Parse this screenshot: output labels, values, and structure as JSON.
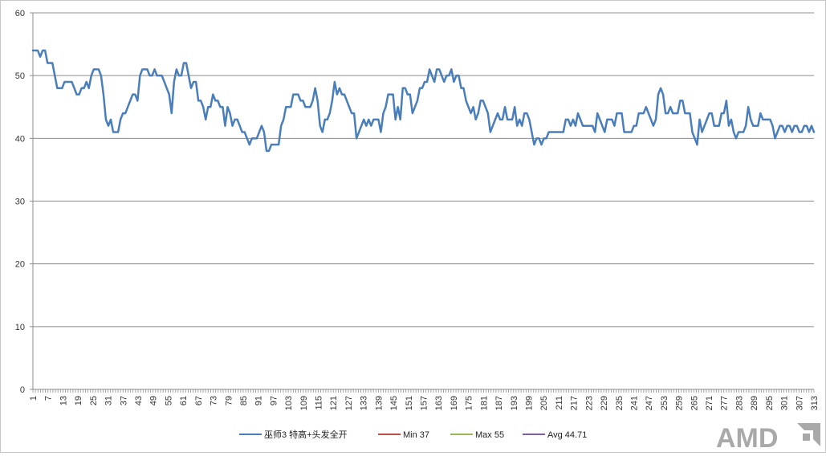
{
  "chart_data": {
    "type": "line",
    "title": "",
    "xlabel": "",
    "ylabel": "",
    "ylim": [
      0,
      60
    ],
    "yticks": [
      0,
      10,
      20,
      30,
      40,
      50,
      60
    ],
    "xlim": [
      1,
      313
    ],
    "xtick_start": 1,
    "xtick_step": 6,
    "grid": "horizontal",
    "legend_position": "bottom",
    "series": [
      {
        "name": "巫师3 特高+头发全开",
        "color": "#4a7ebb",
        "keypoints": [
          [
            1,
            54
          ],
          [
            3,
            54
          ],
          [
            4,
            53
          ],
          [
            5,
            54
          ],
          [
            6,
            54
          ],
          [
            7,
            52
          ],
          [
            9,
            52
          ],
          [
            10,
            50
          ],
          [
            11,
            48
          ],
          [
            13,
            48
          ],
          [
            14,
            49
          ],
          [
            17,
            49
          ],
          [
            18,
            48
          ],
          [
            19,
            47
          ],
          [
            20,
            47
          ],
          [
            21,
            48
          ],
          [
            22,
            48
          ],
          [
            23,
            49
          ],
          [
            24,
            48
          ],
          [
            25,
            50
          ],
          [
            26,
            51
          ],
          [
            28,
            51
          ],
          [
            29,
            50
          ],
          [
            30,
            47
          ],
          [
            31,
            43
          ],
          [
            32,
            42
          ],
          [
            33,
            43
          ],
          [
            34,
            41
          ],
          [
            36,
            41
          ],
          [
            37,
            43
          ],
          [
            38,
            44
          ],
          [
            39,
            44
          ],
          [
            41,
            46
          ],
          [
            42,
            47
          ],
          [
            43,
            47
          ],
          [
            44,
            46
          ],
          [
            45,
            50
          ],
          [
            46,
            51
          ],
          [
            48,
            51
          ],
          [
            49,
            50
          ],
          [
            50,
            50
          ],
          [
            51,
            51
          ],
          [
            52,
            50
          ],
          [
            54,
            50
          ],
          [
            55,
            49
          ],
          [
            56,
            48
          ],
          [
            57,
            47
          ],
          [
            58,
            44
          ],
          [
            59,
            49
          ],
          [
            60,
            51
          ],
          [
            61,
            50
          ],
          [
            62,
            50
          ],
          [
            63,
            52
          ],
          [
            64,
            52
          ],
          [
            65,
            50
          ],
          [
            66,
            48
          ],
          [
            67,
            49
          ],
          [
            68,
            49
          ],
          [
            69,
            46
          ],
          [
            70,
            46
          ],
          [
            71,
            45
          ],
          [
            72,
            43
          ],
          [
            73,
            45
          ],
          [
            74,
            45
          ],
          [
            75,
            47
          ],
          [
            76,
            46
          ],
          [
            77,
            46
          ],
          [
            78,
            45
          ],
          [
            79,
            45
          ],
          [
            80,
            42
          ],
          [
            81,
            45
          ],
          [
            82,
            44
          ],
          [
            83,
            42
          ],
          [
            84,
            43
          ],
          [
            85,
            43
          ],
          [
            86,
            42
          ],
          [
            87,
            41
          ],
          [
            88,
            41
          ],
          [
            89,
            40
          ],
          [
            90,
            39
          ],
          [
            91,
            40
          ],
          [
            92,
            40
          ],
          [
            93,
            40
          ],
          [
            94,
            41
          ],
          [
            95,
            42
          ],
          [
            96,
            41
          ],
          [
            97,
            38
          ],
          [
            98,
            38
          ],
          [
            99,
            39
          ],
          [
            102,
            39
          ],
          [
            103,
            42
          ],
          [
            104,
            43
          ],
          [
            105,
            45
          ],
          [
            107,
            45
          ],
          [
            108,
            47
          ],
          [
            110,
            47
          ],
          [
            111,
            46
          ],
          [
            112,
            46
          ],
          [
            113,
            45
          ],
          [
            114,
            45
          ],
          [
            115,
            45
          ],
          [
            116,
            46
          ],
          [
            117,
            48
          ],
          [
            118,
            46
          ],
          [
            119,
            42
          ],
          [
            120,
            41
          ],
          [
            121,
            43
          ],
          [
            122,
            43
          ],
          [
            123,
            44
          ],
          [
            124,
            46
          ],
          [
            125,
            49
          ],
          [
            126,
            47
          ],
          [
            127,
            48
          ],
          [
            128,
            47
          ],
          [
            129,
            47
          ],
          [
            130,
            46
          ],
          [
            131,
            45
          ],
          [
            132,
            44
          ],
          [
            133,
            44
          ],
          [
            134,
            40
          ],
          [
            135,
            41
          ],
          [
            136,
            42
          ],
          [
            137,
            43
          ],
          [
            138,
            42
          ],
          [
            139,
            43
          ],
          [
            140,
            42
          ],
          [
            141,
            43
          ],
          [
            143,
            43
          ],
          [
            144,
            41
          ],
          [
            145,
            44
          ],
          [
            146,
            45
          ],
          [
            147,
            47
          ],
          [
            149,
            47
          ],
          [
            150,
            43
          ],
          [
            151,
            45
          ],
          [
            152,
            43
          ],
          [
            153,
            48
          ],
          [
            154,
            48
          ],
          [
            155,
            47
          ],
          [
            156,
            47
          ],
          [
            157,
            44
          ],
          [
            158,
            45
          ],
          [
            159,
            46
          ],
          [
            160,
            48
          ],
          [
            161,
            48
          ],
          [
            162,
            49
          ],
          [
            163,
            49
          ],
          [
            164,
            51
          ],
          [
            165,
            50
          ],
          [
            166,
            49
          ],
          [
            167,
            51
          ],
          [
            168,
            51
          ],
          [
            169,
            50
          ],
          [
            170,
            49
          ],
          [
            171,
            50
          ],
          [
            172,
            50
          ],
          [
            173,
            51
          ],
          [
            174,
            49
          ],
          [
            175,
            50
          ],
          [
            176,
            50
          ],
          [
            177,
            48
          ],
          [
            178,
            48
          ],
          [
            179,
            46
          ],
          [
            180,
            45
          ],
          [
            181,
            44
          ],
          [
            182,
            45
          ],
          [
            183,
            43
          ],
          [
            184,
            44
          ],
          [
            185,
            46
          ],
          [
            186,
            46
          ],
          [
            187,
            45
          ],
          [
            188,
            44
          ],
          [
            189,
            41
          ],
          [
            190,
            42
          ],
          [
            191,
            43
          ],
          [
            192,
            44
          ],
          [
            193,
            43
          ],
          [
            194,
            43
          ],
          [
            195,
            45
          ],
          [
            196,
            43
          ],
          [
            197,
            43
          ],
          [
            198,
            43
          ],
          [
            199,
            45
          ],
          [
            200,
            42
          ],
          [
            201,
            43
          ],
          [
            202,
            42
          ],
          [
            203,
            44
          ],
          [
            204,
            44
          ],
          [
            205,
            43
          ],
          [
            206,
            41
          ],
          [
            207,
            39
          ],
          [
            208,
            40
          ],
          [
            209,
            40
          ],
          [
            210,
            39
          ],
          [
            211,
            40
          ],
          [
            212,
            40
          ],
          [
            213,
            41
          ],
          [
            219,
            41
          ],
          [
            220,
            43
          ],
          [
            221,
            43
          ],
          [
            222,
            42
          ],
          [
            223,
            43
          ],
          [
            224,
            42
          ],
          [
            225,
            44
          ],
          [
            226,
            43
          ],
          [
            227,
            42
          ],
          [
            231,
            42
          ],
          [
            232,
            41
          ],
          [
            233,
            44
          ],
          [
            234,
            43
          ],
          [
            235,
            42
          ],
          [
            236,
            41
          ],
          [
            237,
            43
          ],
          [
            239,
            43
          ],
          [
            240,
            42
          ],
          [
            241,
            44
          ],
          [
            243,
            44
          ],
          [
            244,
            41
          ],
          [
            247,
            41
          ],
          [
            248,
            42
          ],
          [
            249,
            42
          ],
          [
            250,
            44
          ],
          [
            252,
            44
          ],
          [
            253,
            45
          ],
          [
            254,
            44
          ],
          [
            255,
            43
          ],
          [
            256,
            42
          ],
          [
            257,
            43
          ],
          [
            258,
            47
          ],
          [
            259,
            48
          ],
          [
            260,
            47
          ],
          [
            261,
            44
          ],
          [
            262,
            44
          ],
          [
            263,
            45
          ],
          [
            264,
            44
          ],
          [
            266,
            44
          ],
          [
            267,
            46
          ],
          [
            268,
            46
          ],
          [
            269,
            44
          ],
          [
            271,
            44
          ],
          [
            272,
            41
          ],
          [
            273,
            40
          ],
          [
            274,
            39
          ],
          [
            275,
            43
          ],
          [
            276,
            41
          ],
          [
            277,
            42
          ],
          [
            278,
            43
          ],
          [
            279,
            44
          ],
          [
            280,
            44
          ],
          [
            281,
            42
          ],
          [
            283,
            42
          ],
          [
            284,
            44
          ],
          [
            285,
            44
          ],
          [
            286,
            46
          ],
          [
            287,
            42
          ],
          [
            288,
            43
          ],
          [
            289,
            41
          ],
          [
            290,
            40
          ],
          [
            291,
            41
          ],
          [
            293,
            41
          ],
          [
            294,
            42
          ],
          [
            295,
            45
          ],
          [
            296,
            43
          ],
          [
            297,
            42
          ],
          [
            299,
            42
          ],
          [
            300,
            44
          ],
          [
            301,
            43
          ],
          [
            304,
            43
          ],
          [
            305,
            42
          ],
          [
            306,
            40
          ],
          [
            307,
            41
          ],
          [
            308,
            42
          ],
          [
            309,
            42
          ],
          [
            310,
            41
          ],
          [
            311,
            42
          ],
          [
            312,
            42
          ],
          [
            313,
            41
          ],
          [
            314,
            42
          ],
          [
            315,
            42
          ],
          [
            316,
            41
          ],
          [
            317,
            41
          ],
          [
            318,
            42
          ],
          [
            319,
            42
          ],
          [
            320,
            41
          ],
          [
            321,
            42
          ],
          [
            322,
            41
          ]
        ]
      },
      {
        "name": "Min 37",
        "color": "#be4b48",
        "value": 37
      },
      {
        "name": "Max 55",
        "color": "#98b954",
        "value": 55
      },
      {
        "name": "Avg 44.71",
        "color": "#7d60a0",
        "value": 44.71
      }
    ]
  },
  "watermark": {
    "text": "AMD"
  }
}
